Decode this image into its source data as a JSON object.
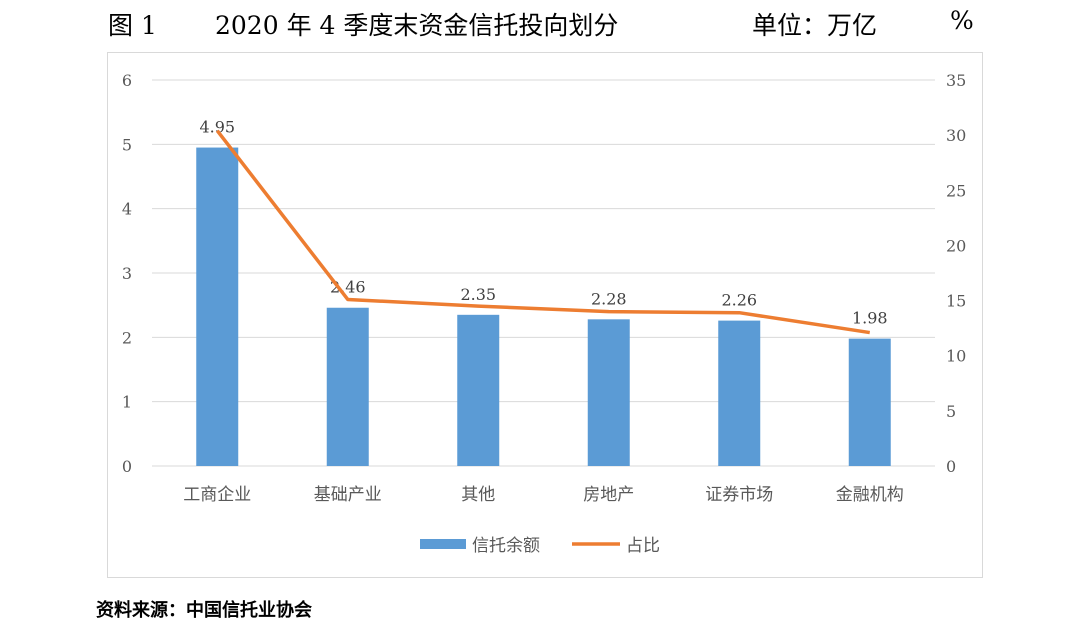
{
  "title": {
    "figure": "图 1",
    "text": "2020 年 4 季度末资金信托投向划分",
    "unit": "单位：万亿",
    "percent": "%"
  },
  "source": "资料来源：中国信托业协会",
  "chart_data": {
    "type": "bar+line",
    "categories": [
      "工商企业",
      "基础产业",
      "其他",
      "房地产",
      "证券市场",
      "金融机构"
    ],
    "series": [
      {
        "name": "信托余额",
        "type": "bar",
        "axis": "left",
        "color": "#5b9bd5",
        "values": [
          4.95,
          2.46,
          2.35,
          2.28,
          2.26,
          1.98
        ],
        "labels": [
          "4.95",
          "2.46",
          "2.35",
          "2.28",
          "2.26",
          "1.98"
        ]
      },
      {
        "name": "占比",
        "type": "line",
        "axis": "right",
        "color": "#ed7d31",
        "values": [
          30.4,
          15.1,
          14.5,
          14.0,
          13.9,
          12.1
        ]
      }
    ],
    "y_left": {
      "min": 0,
      "max": 6,
      "ticks": [
        "0",
        "1",
        "2",
        "3",
        "4",
        "5",
        "6"
      ]
    },
    "y_right": {
      "min": 0,
      "max": 35,
      "ticks": [
        "0",
        "5",
        "10",
        "15",
        "20",
        "25",
        "30",
        "35"
      ]
    },
    "grid": true,
    "legend": "bottom"
  }
}
